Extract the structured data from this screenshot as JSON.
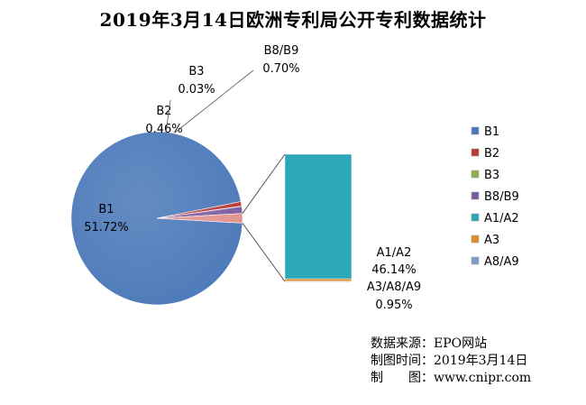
{
  "chart_data": {
    "type": "pie",
    "title": "2019年3月14日欧洲专利局公开专利数据统计",
    "variant": "bar-of-pie",
    "slices": [
      {
        "label": "B1",
        "value": 51.72,
        "display": "51.72%",
        "color": "#4a78b8"
      },
      {
        "label": "B2",
        "value": 0.46,
        "display": "0.46%",
        "color": "#b93a36"
      },
      {
        "label": "B3",
        "value": 0.03,
        "display": "0.03%",
        "color": "#8ab04a"
      },
      {
        "label": "B8/B9",
        "value": 0.7,
        "display": "0.70%",
        "color": "#7b5aa0"
      },
      {
        "label": "A3/A8/A9",
        "value": 0.95,
        "display": "0.95%",
        "color": "#e58a72"
      }
    ],
    "bar_breakdown": [
      {
        "label": "A1/A2",
        "value": 46.14,
        "display": "46.14%",
        "color": "#2ea7bb"
      },
      {
        "label": "A3",
        "value": 0.85,
        "color": "#e08a2c"
      },
      {
        "label": "A8/A9",
        "value": 0.1,
        "color": "#7f9cc8"
      }
    ],
    "legend": [
      "B1",
      "B2",
      "B3",
      "B8/B9",
      "A1/A2",
      "A3",
      "A8/A9"
    ],
    "legend_colors": [
      "#4a78b8",
      "#b93a36",
      "#8ab04a",
      "#7b5aa0",
      "#2ea7bb",
      "#e08a2c",
      "#7f9cc8"
    ],
    "legend_position": "right"
  },
  "source": {
    "line1": "数据来源：EPO网站",
    "line2": "制图时间：2019年3月14日",
    "line3": "制　　图：www.cnipr.com"
  }
}
